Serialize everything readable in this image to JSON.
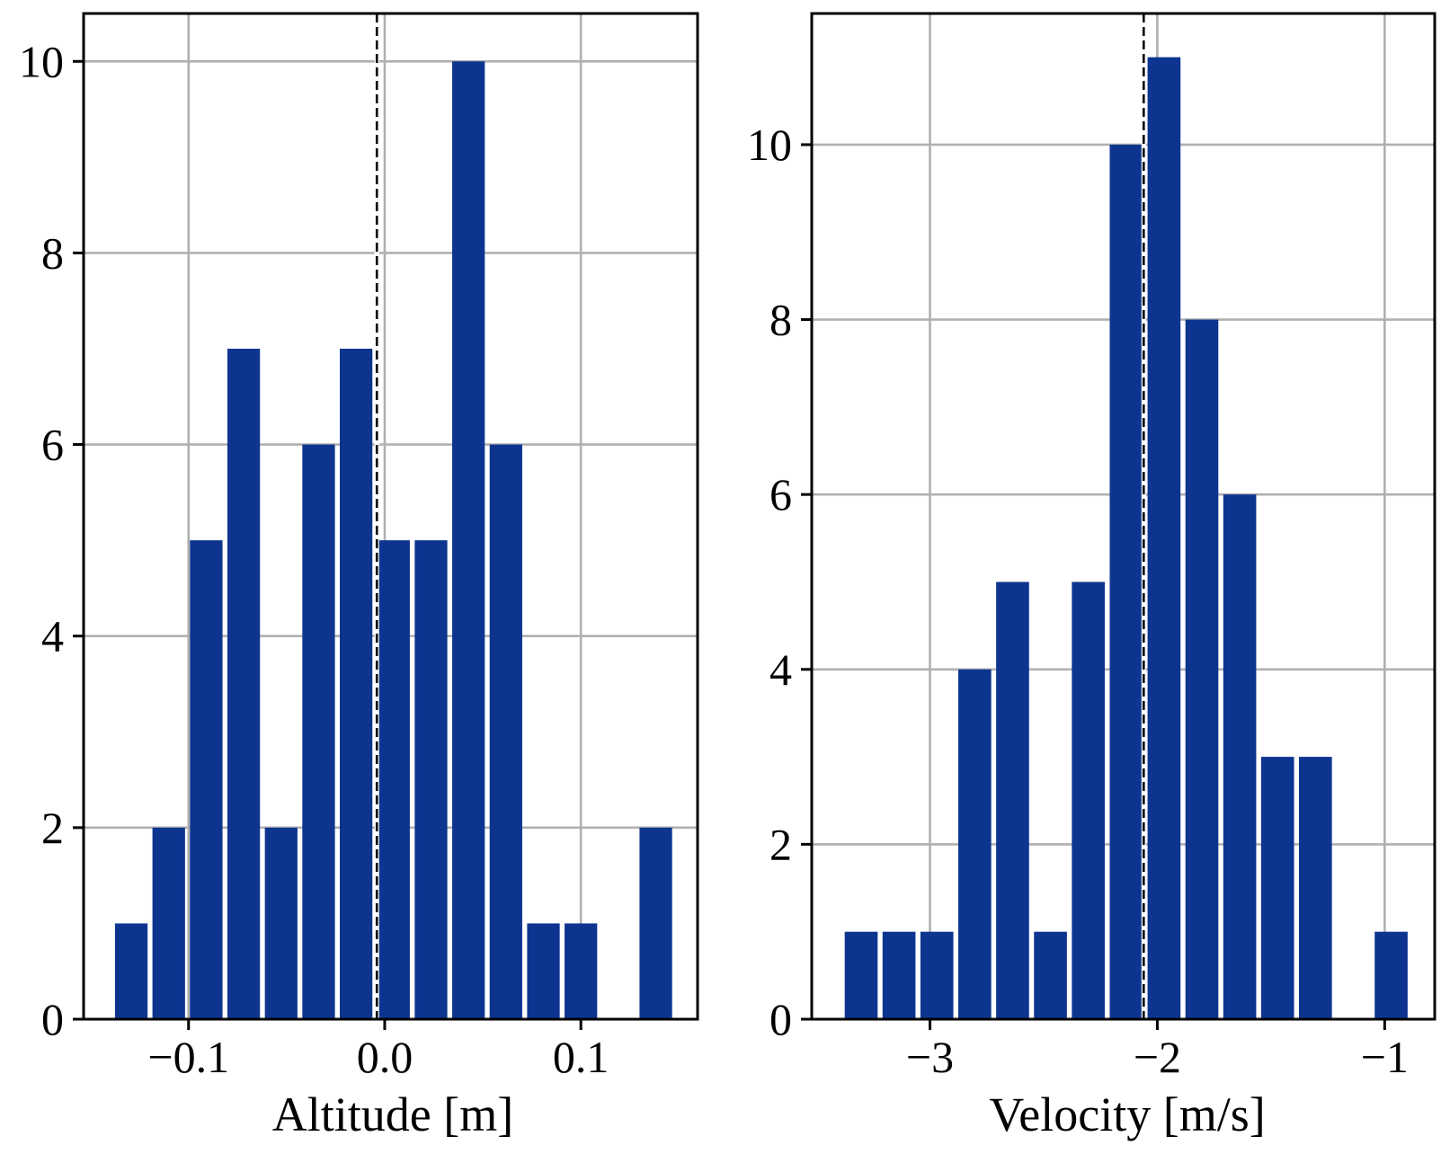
{
  "colors": {
    "bar": "#0d3590",
    "grid": "#b0b0b0",
    "axis": "#000000",
    "ref_line": "#000000"
  },
  "chart_data": [
    {
      "type": "bar",
      "title": "",
      "xlabel": "Altitude [m]",
      "ylabel": "",
      "grid": true,
      "xlim": [
        -0.1535,
        0.1595
      ],
      "ylim": [
        0,
        10.5
      ],
      "xticks": [
        {
          "value": -0.1,
          "label": "−0.1"
        },
        {
          "value": 0.0,
          "label": "0.0"
        },
        {
          "value": 0.1,
          "label": "0.1"
        }
      ],
      "yticks": [
        {
          "value": 0,
          "label": "0"
        },
        {
          "value": 2,
          "label": "2"
        },
        {
          "value": 4,
          "label": "4"
        },
        {
          "value": 6,
          "label": "6"
        },
        {
          "value": 8,
          "label": "8"
        },
        {
          "value": 10,
          "label": "10"
        }
      ],
      "bin_start": -0.1375,
      "bin_width": 0.0191,
      "bar_fraction": 0.87,
      "counts": [
        1,
        2,
        5,
        7,
        2,
        6,
        7,
        5,
        5,
        10,
        6,
        1,
        1,
        0,
        2
      ],
      "reference_line": -0.004
    },
    {
      "type": "bar",
      "title": "",
      "xlabel": "Velocity [m/s]",
      "ylabel": "",
      "grid": true,
      "xlim": [
        -3.52,
        -0.78
      ],
      "ylim": [
        0,
        11.5
      ],
      "xticks": [
        {
          "value": -3,
          "label": "−3"
        },
        {
          "value": -2,
          "label": "−2"
        },
        {
          "value": -1,
          "label": "−1"
        }
      ],
      "yticks": [
        {
          "value": 0,
          "label": "0"
        },
        {
          "value": 2,
          "label": "2"
        },
        {
          "value": 4,
          "label": "4"
        },
        {
          "value": 6,
          "label": "6"
        },
        {
          "value": 8,
          "label": "8"
        },
        {
          "value": 10,
          "label": "10"
        }
      ],
      "bin_start": -3.375,
      "bin_width": 0.1665,
      "bar_fraction": 0.87,
      "counts": [
        1,
        1,
        1,
        4,
        5,
        1,
        5,
        10,
        11,
        8,
        6,
        3,
        3,
        0,
        1
      ],
      "reference_line": -2.06
    }
  ]
}
